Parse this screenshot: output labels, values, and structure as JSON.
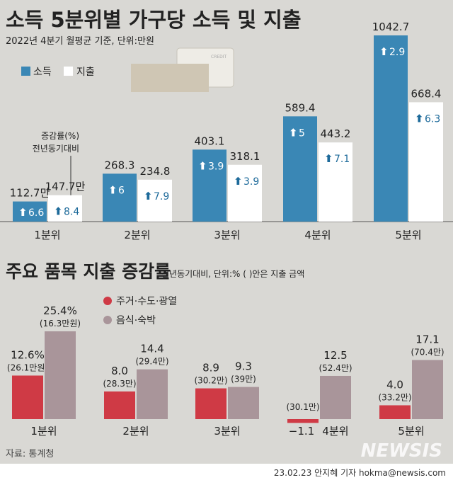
{
  "colors": {
    "income": "#3a87b5",
    "expense": "#ffffff",
    "housing": "#cf3a45",
    "food": "#a9959a",
    "text": "#222222",
    "arrow_dark": "#1d6a9a"
  },
  "chart_data": [
    {
      "type": "bar",
      "title": "소득 5분위별 가구당 소득 및 지출",
      "subtitle": "2022년 4분기 월평균 기준, 단위:만원",
      "categories": [
        "1분위",
        "2분위",
        "3분위",
        "4분위",
        "5분위"
      ],
      "series": [
        {
          "name": "소득",
          "values": [
            112.7,
            268.3,
            403.1,
            589.4,
            1042.7
          ],
          "labels": [
            "112.7만",
            "268.3",
            "403.1",
            "589.4",
            "1042.7"
          ],
          "change": [
            6.6,
            6.0,
            3.9,
            5.0,
            2.9
          ]
        },
        {
          "name": "지출",
          "values": [
            147.7,
            234.8,
            318.1,
            443.2,
            668.4
          ],
          "labels": [
            "147.7만",
            "234.8",
            "318.1",
            "443.2",
            "668.4"
          ],
          "change": [
            8.4,
            7.9,
            3.9,
            7.1,
            6.3
          ]
        }
      ],
      "annotation": [
        "증감률(%)",
        "전년동기대비"
      ],
      "legend": "top-left",
      "ylim": [
        0,
        1100
      ],
      "grid": false
    },
    {
      "type": "bar",
      "title": "주요 품목 지출 증감률",
      "subtitle": "전년동기대비, 단위:% ( )안은 지출 금액",
      "categories": [
        "1분위",
        "2분위",
        "3분위",
        "4분위",
        "5분위"
      ],
      "series": [
        {
          "name": "주거·수도·광열",
          "values": [
            12.6,
            8.0,
            8.9,
            -1.1,
            4.0
          ],
          "labels": [
            "12.6%",
            "8.0",
            "8.9",
            "−1.1",
            "4.0"
          ],
          "amounts": [
            "(26.1만원)",
            "(28.3만)",
            "(30.2만)",
            "(30.1만)",
            "(33.2만)"
          ]
        },
        {
          "name": "음식·숙박",
          "values": [
            25.4,
            14.4,
            9.3,
            12.5,
            17.1
          ],
          "labels": [
            "25.4%",
            "14.4",
            "9.3",
            "12.5",
            "17.1"
          ],
          "amounts": [
            "(16.3만원)",
            "(29.4만)",
            "(39만)",
            "(52.4만)",
            "(70.4만)"
          ]
        }
      ],
      "legend": "top-left",
      "ylim": [
        -2,
        27
      ],
      "grid": false
    }
  ],
  "source": "자료: 통계청",
  "credit": "23.02.23 안지혜 기자 hokma@newsis.com",
  "logo": "NEWSIS"
}
